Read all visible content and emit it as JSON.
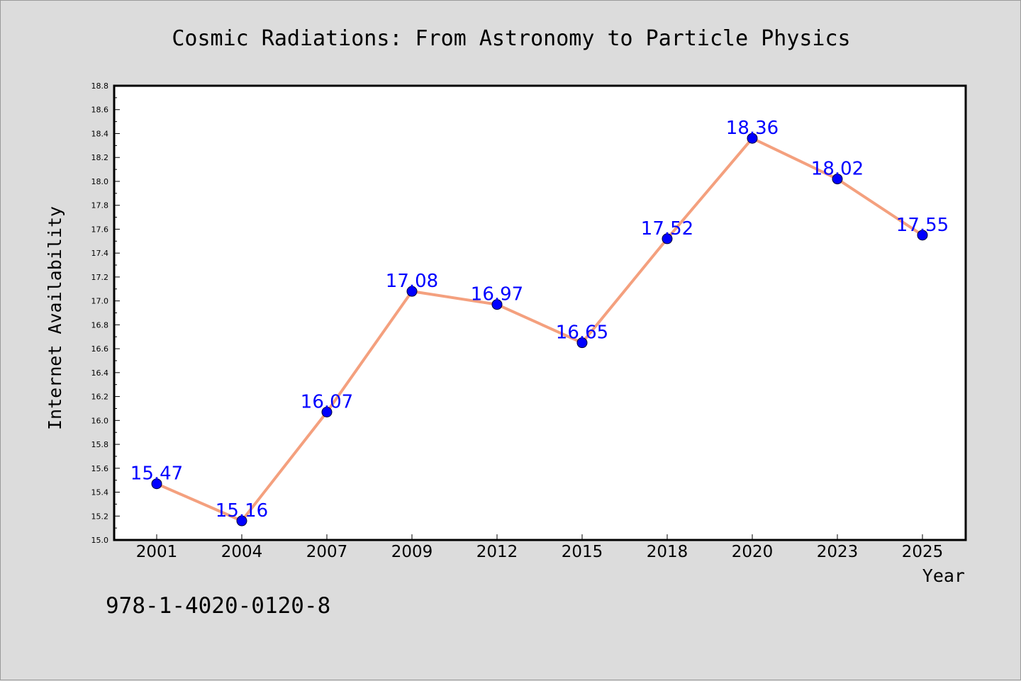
{
  "chart_data": {
    "type": "line",
    "title": "Cosmic Radiations: From Astronomy to Particle Physics",
    "xlabel": "Year",
    "ylabel": "Internet Availability",
    "categories": [
      "2001",
      "2004",
      "2007",
      "2009",
      "2012",
      "2015",
      "2018",
      "2020",
      "2023",
      "2025"
    ],
    "values": [
      15.47,
      15.16,
      16.07,
      17.08,
      16.97,
      16.65,
      17.52,
      18.36,
      18.02,
      17.55
    ],
    "data_labels": [
      "15.47",
      "15.16",
      "16.07",
      "17.08",
      "16.97",
      "16.65",
      "17.52",
      "18.36",
      "18.02",
      "17.55"
    ],
    "ylim": [
      15.0,
      18.8
    ],
    "yticks": [
      "15.0",
      "15.2",
      "15.4",
      "15.6",
      "15.8",
      "16.0",
      "16.2",
      "16.4",
      "16.6",
      "16.8",
      "17.0",
      "17.2",
      "17.4",
      "17.6",
      "17.8",
      "18.0",
      "18.2",
      "18.4",
      "18.6",
      "18.8"
    ],
    "grid": false,
    "legend": "none",
    "colors": {
      "line": "#f4a07e",
      "marker": "#0000ff",
      "data_label": "#0000ff",
      "plot_background": "#ffffff",
      "figure_background": "#dcdcdc"
    }
  },
  "footer_text": "978-1-4020-0120-8"
}
